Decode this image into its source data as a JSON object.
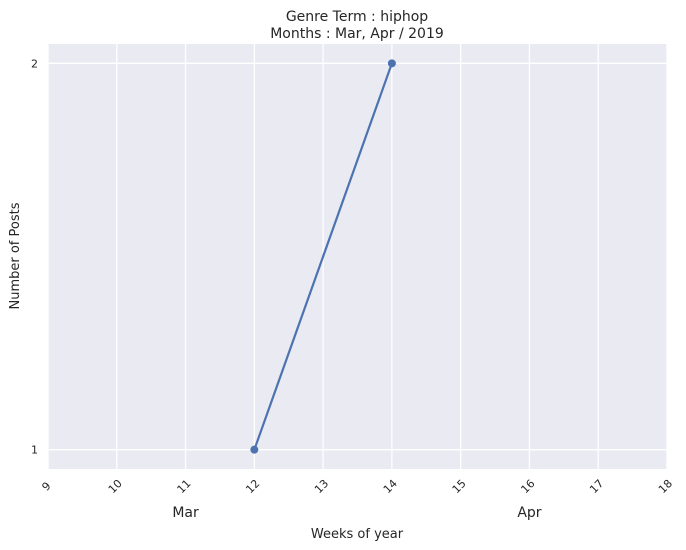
{
  "chart_data": {
    "type": "line",
    "title": "Genre Term : hiphop",
    "subtitle": "Months : Mar, Apr / 2019",
    "xlabel": "Weeks of year",
    "ylabel": "Number of Posts",
    "x_ticks": [
      9,
      10,
      11,
      12,
      13,
      14,
      15,
      16,
      17,
      18
    ],
    "y_ticks": [
      1,
      2
    ],
    "xlim": [
      9,
      18
    ],
    "ylim": [
      0.95,
      2.05
    ],
    "month_labels": [
      {
        "label": "Mar",
        "week": 11
      },
      {
        "label": "Apr",
        "week": 16
      }
    ],
    "grid": true,
    "series": [
      {
        "x": [
          12,
          14
        ],
        "y": [
          1,
          2
        ],
        "color": "#4c72b0"
      }
    ],
    "colors": {
      "background": "#eaeaf2",
      "grid": "#ffffff",
      "line": "#4c72b0"
    }
  }
}
